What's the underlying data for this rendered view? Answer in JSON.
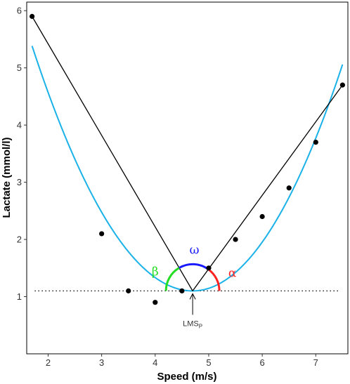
{
  "chart_data": {
    "type": "scatter",
    "title": "",
    "xlabel": "Speed (m/s)",
    "ylabel": "Lactate (mmol/l)",
    "xlim": [
      1.6,
      7.6
    ],
    "ylim": [
      0,
      6.15
    ],
    "xticks": [
      2,
      3,
      4,
      5,
      6,
      7
    ],
    "yticks": [
      1,
      2,
      3,
      4,
      5,
      6
    ],
    "grid": false,
    "points": [
      {
        "x": 1.7,
        "y": 5.9
      },
      {
        "x": 3.0,
        "y": 2.1
      },
      {
        "x": 3.5,
        "y": 1.1
      },
      {
        "x": 4.0,
        "y": 0.9
      },
      {
        "x": 4.5,
        "y": 1.1
      },
      {
        "x": 5.0,
        "y": 1.5
      },
      {
        "x": 5.5,
        "y": 2.0
      },
      {
        "x": 6.0,
        "y": 2.4
      },
      {
        "x": 6.5,
        "y": 2.9
      },
      {
        "x": 7.0,
        "y": 3.7
      },
      {
        "x": 7.5,
        "y": 4.7
      }
    ],
    "fitted_curve": {
      "x_range": [
        1.7,
        7.5
      ],
      "vertex_x": 4.7,
      "vertex_y": 1.1,
      "coef_left": 0.476,
      "coef_right": 0.505,
      "color": "#1ab2e8"
    },
    "tangent_lines": [
      {
        "x": [
          1.7,
          4.7
        ],
        "y": [
          5.9,
          1.1
        ]
      },
      {
        "x": [
          4.7,
          7.5
        ],
        "y": [
          1.1,
          4.7
        ]
      }
    ],
    "baseline": {
      "y": 1.1,
      "x_range": [
        1.75,
        7.45
      ],
      "style": "dotted"
    },
    "angle_arcs": [
      {
        "label": "β",
        "color": "#22dd22"
      },
      {
        "label": "ω",
        "color": "#1a1aff"
      },
      {
        "label": "α",
        "color": "#ff2222"
      }
    ],
    "annotation": {
      "text": "LMS",
      "subscript": "P",
      "x": 4.7
    }
  }
}
